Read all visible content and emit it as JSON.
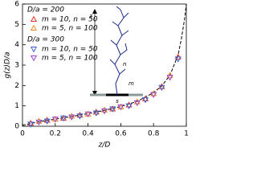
{
  "chart_data": {
    "type": "scatter",
    "x_label": "z/D",
    "y_label": "g(z)D/a",
    "xlim": [
      0,
      1
    ],
    "ylim": [
      0,
      6
    ],
    "xticks": [
      0,
      0.2,
      0.4,
      0.6,
      0.8,
      1
    ],
    "yticks": [
      0,
      1,
      2,
      3,
      4,
      5,
      6
    ],
    "legend_groups": [
      "D/a = 200",
      "D/a = 300"
    ],
    "series": [
      {
        "name": "m = 10, n = 50",
        "color": "#e8302a",
        "marker": "triangle-up",
        "x": [
          0.05,
          0.15,
          0.25,
          0.35,
          0.45,
          0.55,
          0.65,
          0.75,
          0.85,
          0.95
        ],
        "values": [
          0.15,
          0.3,
          0.4,
          0.55,
          0.7,
          0.85,
          1.05,
          1.35,
          1.95,
          3.4
        ]
      },
      {
        "name": "m = 5, n = 100",
        "color": "#f08a24",
        "marker": "triangle-up",
        "x": [
          0.1,
          0.2,
          0.3,
          0.4,
          0.5,
          0.6,
          0.7,
          0.8,
          0.9
        ],
        "values": [
          0.25,
          0.35,
          0.5,
          0.6,
          0.8,
          0.95,
          1.2,
          1.6,
          2.5
        ]
      },
      {
        "name": "m = 10, n = 50",
        "color": "#3a5fcd",
        "marker": "triangle-down",
        "x": [
          0.05,
          0.15,
          0.25,
          0.35,
          0.45,
          0.55,
          0.65,
          0.75,
          0.85,
          0.95
        ],
        "values": [
          0.1,
          0.25,
          0.4,
          0.5,
          0.65,
          0.85,
          1.0,
          1.3,
          1.9,
          3.3
        ]
      },
      {
        "name": "m = 5, n = 100",
        "color": "#9b3fc9",
        "marker": "triangle-down",
        "x": [
          0.1,
          0.2,
          0.3,
          0.4,
          0.5,
          0.6,
          0.7,
          0.8,
          0.9
        ],
        "values": [
          0.2,
          0.35,
          0.45,
          0.6,
          0.75,
          0.95,
          1.15,
          1.55,
          2.4
        ]
      }
    ],
    "fit": {
      "color": "#000000",
      "style": "dashed",
      "x": [
        0,
        0.1,
        0.2,
        0.3,
        0.4,
        0.5,
        0.6,
        0.7,
        0.8,
        0.85,
        0.9,
        0.95,
        0.97,
        0.99,
        1
      ],
      "values": [
        0.05,
        0.22,
        0.35,
        0.48,
        0.62,
        0.78,
        0.97,
        1.22,
        1.65,
        1.98,
        2.5,
        3.5,
        4.3,
        5.3,
        6
      ]
    },
    "inset_labels": [
      "z",
      "n",
      "m",
      "s"
    ]
  }
}
